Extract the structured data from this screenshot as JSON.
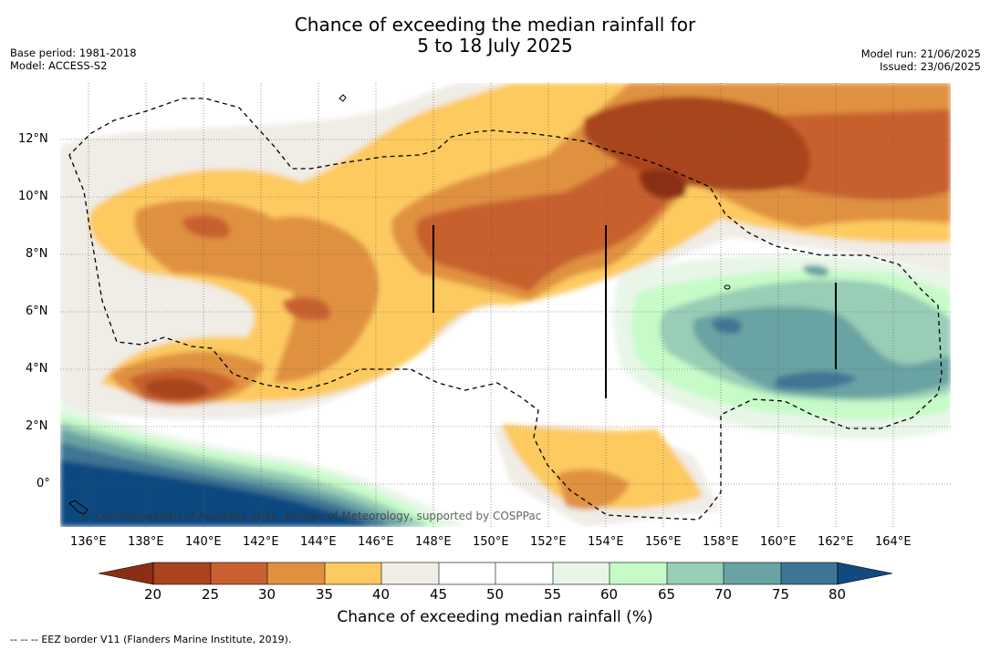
{
  "title": {
    "line1": "Chance of exceeding the median rainfall for",
    "line2": "5 to 18 July 2025"
  },
  "meta_left": {
    "base_period": "Base period: 1981-2018",
    "model": "Model: ACCESS-S2"
  },
  "meta_right": {
    "model_run": "Model run: 21/06/2025",
    "issued": "Issued: 23/06/2025"
  },
  "map": {
    "lon_labels": [
      "136°E",
      "138°E",
      "140°E",
      "142°E",
      "144°E",
      "146°E",
      "148°E",
      "150°E",
      "152°E",
      "154°E",
      "156°E",
      "158°E",
      "160°E",
      "162°E",
      "164°E"
    ],
    "lat_labels": [
      "12°N",
      "10°N",
      "8°N",
      "6°N",
      "4°N",
      "2°N",
      "0°"
    ],
    "copyright": "© Commonwealth of Australia 2025, Bureau of Meteorology, supported by COSPPac",
    "grid": true,
    "eez_border_style": "dashed"
  },
  "colorbar": {
    "ticks": [
      "20",
      "25",
      "30",
      "35",
      "40",
      "45",
      "50",
      "55",
      "60",
      "65",
      "70",
      "75",
      "80"
    ],
    "colors": [
      "#8b2f14",
      "#a9441f",
      "#c8612f",
      "#e0913f",
      "#fdca60",
      "#f0ece6",
      "#ffffff",
      "#ffffff",
      "#e8f6e8",
      "#c6fbc8",
      "#98cdb6",
      "#6aa3a3",
      "#3f7594",
      "#114a80"
    ],
    "label": "Chance of exceeding median rainfall (%)"
  },
  "footer": {
    "dashes": "--  --  --",
    "text": "EEZ border V11 (Flanders Marine Institute, 2019)."
  }
}
